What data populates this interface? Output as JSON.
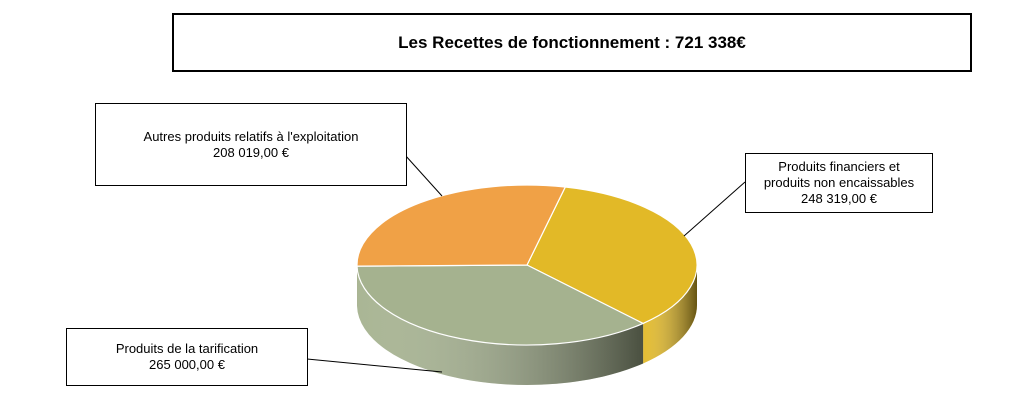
{
  "chart_data": {
    "type": "pie",
    "title": "Les Recettes de fonctionnement : 721 338€",
    "categories": [
      "Produits financiers et produits non encaissables",
      "Produits de la tarification",
      "Autres produits relatifs à l'exploitation"
    ],
    "values": [
      248319,
      265000,
      208019
    ],
    "value_labels": [
      "248 319,00 €",
      "265 000,00 €",
      "208 019,00 €"
    ],
    "colors": [
      "#e2b927",
      "#a5b28f",
      "#f0a146"
    ]
  }
}
